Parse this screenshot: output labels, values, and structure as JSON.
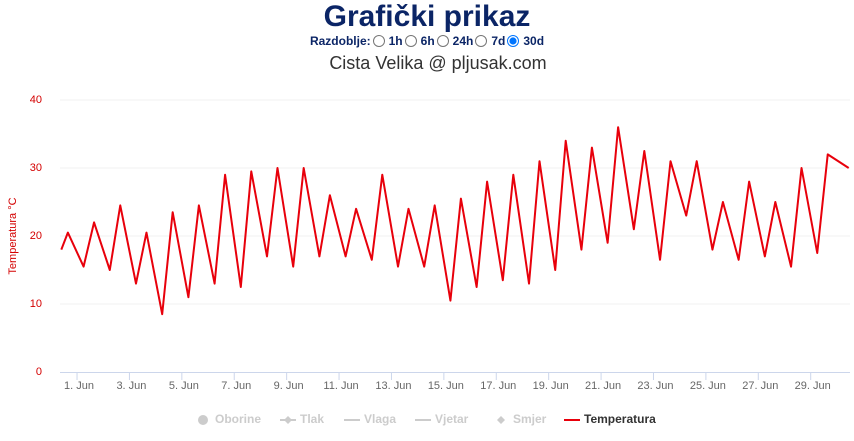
{
  "header": {
    "title": "Grafički prikaz",
    "period_label": "Razdoblje:",
    "period_options": [
      "1h",
      "6h",
      "24h",
      "7d",
      "30d"
    ],
    "period_selected": "30d"
  },
  "chart_data": {
    "type": "line",
    "title": "Cista Velika @ pljusak.com",
    "y_label": "Temperatura °C",
    "xlim": [
      0.35,
      30.5
    ],
    "ylim": [
      0,
      40
    ],
    "yticks": [
      0,
      10,
      20,
      30,
      40
    ],
    "grid": true,
    "xticks": [
      {
        "value": 1,
        "label": "1. Jun"
      },
      {
        "value": 3,
        "label": "3. Jun"
      },
      {
        "value": 5,
        "label": "5. Jun"
      },
      {
        "value": 7,
        "label": "7. Jun"
      },
      {
        "value": 9,
        "label": "9. Jun"
      },
      {
        "value": 11,
        "label": "11. Jun"
      },
      {
        "value": 13,
        "label": "13. Jun"
      },
      {
        "value": 15,
        "label": "15. Jun"
      },
      {
        "value": 17,
        "label": "17. Jun"
      },
      {
        "value": 19,
        "label": "19. Jun"
      },
      {
        "value": 21,
        "label": "21. Jun"
      },
      {
        "value": 23,
        "label": "23. Jun"
      },
      {
        "value": 25,
        "label": "25. Jun"
      },
      {
        "value": 27,
        "label": "27. Jun"
      },
      {
        "value": 29,
        "label": "29. Jun"
      }
    ],
    "hidden_series": [
      {
        "name": "Oborine",
        "symbol": "circle"
      },
      {
        "name": "Tlak",
        "symbol": "line-diamond"
      },
      {
        "name": "Vlaga",
        "symbol": "line"
      },
      {
        "name": "Vjetar",
        "symbol": "line"
      },
      {
        "name": "Smjer",
        "symbol": "diamond"
      }
    ],
    "series": [
      {
        "name": "Temperatura",
        "color": "#e8000b",
        "x": [
          0.4,
          0.65,
          1.25,
          1.65,
          2.25,
          2.65,
          3.25,
          3.65,
          4.25,
          4.65,
          5.25,
          5.65,
          6.25,
          6.65,
          7.25,
          7.65,
          8.25,
          8.65,
          9.25,
          9.65,
          10.25,
          10.65,
          11.25,
          11.65,
          12.25,
          12.65,
          13.25,
          13.65,
          14.25,
          14.65,
          15.25,
          15.65,
          16.25,
          16.65,
          17.25,
          17.65,
          18.25,
          18.65,
          19.25,
          19.65,
          20.25,
          20.65,
          21.25,
          21.65,
          22.25,
          22.65,
          23.25,
          23.65,
          24.25,
          24.65,
          25.25,
          25.65,
          26.25,
          26.65,
          27.25,
          27.65,
          28.25,
          28.65,
          29.25,
          29.65,
          30.45
        ],
        "values": [
          18,
          20.5,
          15.5,
          22,
          15,
          24.5,
          13,
          20.5,
          8.5,
          23.5,
          11,
          24.5,
          13,
          29,
          12.5,
          29.5,
          17,
          30,
          15.5,
          30,
          17,
          26,
          17,
          24,
          16.5,
          29,
          15.5,
          24,
          15.5,
          24.5,
          10.5,
          25.5,
          12.5,
          28,
          13.5,
          29,
          13,
          31,
          15,
          34,
          18,
          33,
          19,
          36,
          21,
          32.5,
          16.5,
          31,
          23,
          31,
          18,
          25,
          16.5,
          28,
          17,
          25,
          15.5,
          30,
          17.5,
          32,
          30
        ]
      }
    ]
  }
}
